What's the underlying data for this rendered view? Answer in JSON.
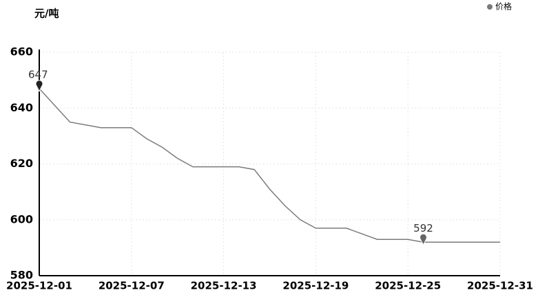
{
  "chart_data": {
    "type": "line",
    "y_label": "元/吨",
    "x": [
      "2025-12-01",
      "2025-12-02",
      "2025-12-03",
      "2025-12-04",
      "2025-12-05",
      "2025-12-06",
      "2025-12-07",
      "2025-12-08",
      "2025-12-09",
      "2025-12-10",
      "2025-12-11",
      "2025-12-12",
      "2025-12-13",
      "2025-12-14",
      "2025-12-15",
      "2025-12-16",
      "2025-12-17",
      "2025-12-18",
      "2025-12-19",
      "2025-12-20",
      "2025-12-21",
      "2025-12-22",
      "2025-12-23",
      "2025-12-24",
      "2025-12-25",
      "2025-12-26",
      "2025-12-27",
      "2025-12-28",
      "2025-12-29",
      "2025-12-30",
      "2025-12-31"
    ],
    "series": [
      {
        "name": "价格",
        "color": "#7a7a7a",
        "values": [
          647,
          641,
          635,
          634,
          633,
          633,
          633,
          629,
          626,
          622,
          619,
          619,
          619,
          619,
          618,
          611,
          605,
          600,
          597,
          597,
          597,
          595,
          593,
          593,
          593,
          592,
          592,
          592,
          592,
          592,
          592
        ]
      }
    ],
    "mark_points": [
      {
        "x": "2025-12-01",
        "value": 647
      },
      {
        "x": "2025-12-26",
        "value": 592
      }
    ],
    "xlim": [
      "2025-12-01",
      "2025-12-31"
    ],
    "xticks": [
      "2025-12-01",
      "2025-12-07",
      "2025-12-13",
      "2025-12-19",
      "2025-12-25",
      "2025-12-31"
    ],
    "ylim": [
      580,
      660
    ],
    "yticks": [
      580,
      600,
      620,
      640,
      660
    ],
    "grid": true,
    "legend": "top-right"
  }
}
